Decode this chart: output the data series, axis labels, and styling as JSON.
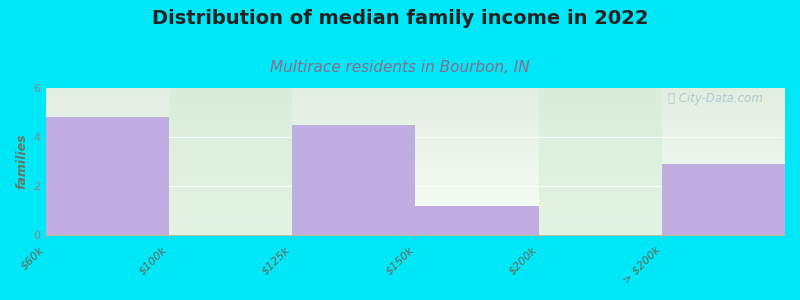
{
  "title": "Distribution of median family income in 2022",
  "subtitle": "Multirace residents in Bourbon, IN",
  "categories": [
    "$60k",
    "$100k",
    "$125k",
    "$150k",
    "$200k",
    "> $200k"
  ],
  "bar_values": [
    4.8,
    0.0,
    4.5,
    1.2,
    0.0,
    2.9
  ],
  "bar_color": "#c0aee0",
  "gap_bg_color": "#d6ecd6",
  "ylabel": "families",
  "ylim": [
    0,
    6
  ],
  "yticks": [
    0,
    2,
    4,
    6
  ],
  "background_color": "#00e8f8",
  "plot_bg_top_color": "#e6f4e6",
  "plot_bg_bottom_color": "#f5fbf5",
  "title_fontsize": 14,
  "subtitle_fontsize": 11,
  "subtitle_color": "#8b6b8b",
  "watermark": "ⓘ City-Data.com",
  "watermark_color": "#aac4cc",
  "ylabel_fontsize": 9,
  "tick_fontsize": 8,
  "tick_color": "#666655",
  "ytick_color": "#888888"
}
